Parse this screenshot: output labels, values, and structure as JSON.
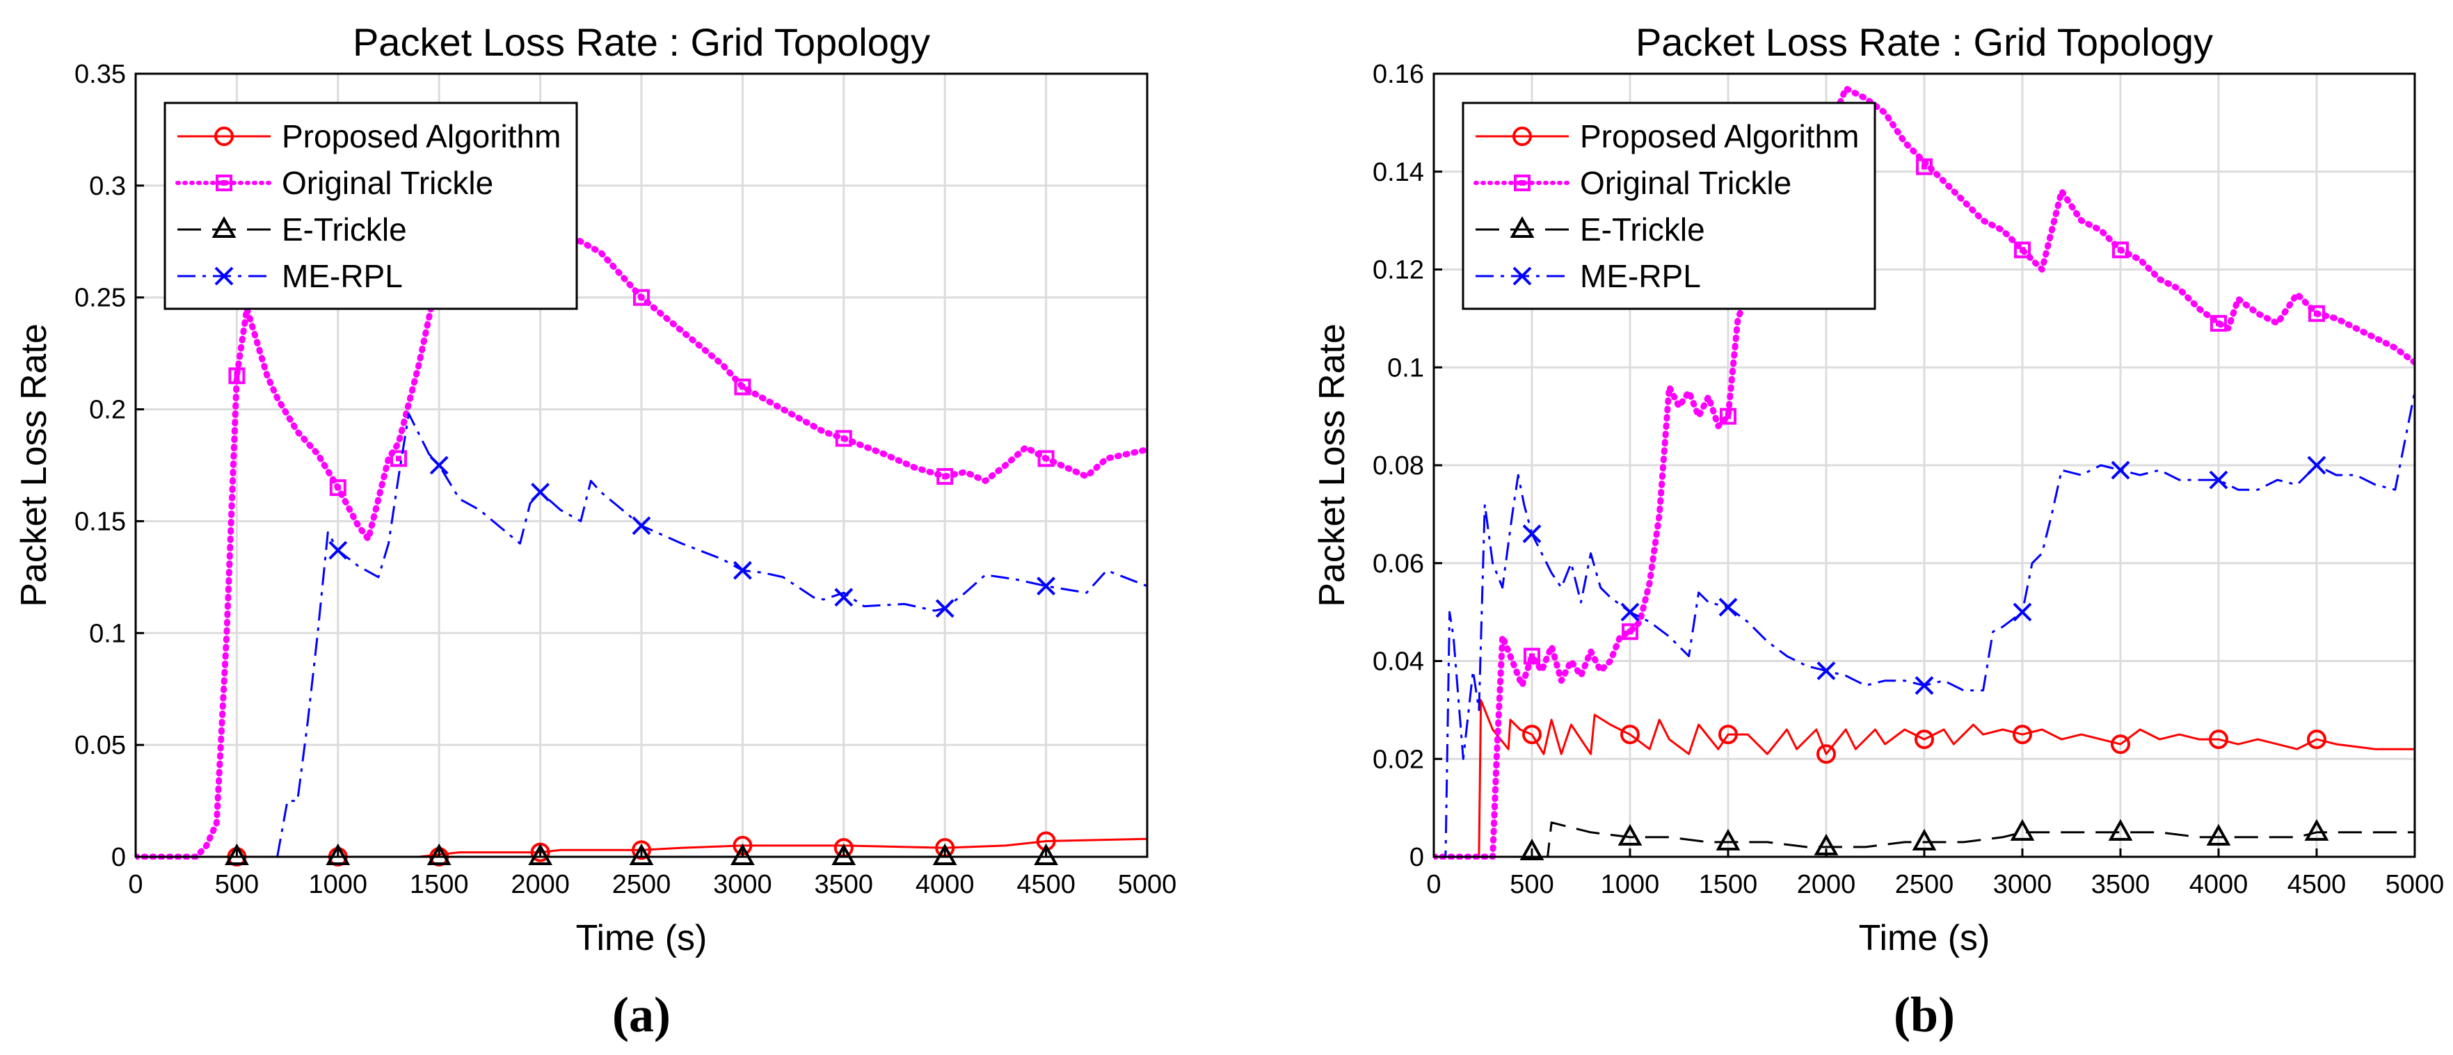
{
  "chart_data": [
    {
      "type": "line",
      "panel": "(a)",
      "title": "Packet Loss Rate : Grid Topology",
      "xlabel": "Time (s)",
      "ylabel": "Packet Loss Rate",
      "xlim": [
        0,
        5000
      ],
      "ylim": [
        0,
        0.35
      ],
      "xticks": [
        0,
        500,
        1000,
        1500,
        2000,
        2500,
        3000,
        3500,
        4000,
        4500,
        5000
      ],
      "xtick_labels": [
        "0",
        "500",
        "1000",
        "1500",
        "2000",
        "2500",
        "3000",
        "3500",
        "4000",
        "4500",
        "5000"
      ],
      "yticks": [
        0,
        0.05,
        0.1,
        0.15,
        0.2,
        0.25,
        0.3,
        0.35
      ],
      "ytick_labels": [
        "0",
        "0.05",
        "0.1",
        "0.15",
        "0.2",
        "0.25",
        "0.3",
        "0.35"
      ],
      "grid": true,
      "legend_position": "top-left",
      "series": [
        {
          "name": "Proposed Algorithm",
          "color": "#ff0000",
          "dash": "solid",
          "marker": "circle",
          "width": 3,
          "x": [
            0,
            1000,
            1400,
            1600,
            2000,
            2100,
            2500,
            2700,
            3000,
            3500,
            4000,
            4300,
            4500,
            5000
          ],
          "y": [
            0,
            0,
            0,
            0.002,
            0.002,
            0.003,
            0.003,
            0.004,
            0.005,
            0.005,
            0.004,
            0.005,
            0.007,
            0.008
          ],
          "marker_x": [
            500,
            1000,
            1500,
            2000,
            2500,
            3000,
            3500,
            4000,
            4500
          ],
          "marker_y": [
            0,
            0,
            0,
            0.002,
            0.003,
            0.005,
            0.004,
            0.004,
            0.007
          ]
        },
        {
          "name": "Original Trickle",
          "color": "#ff00ff",
          "dash": "dotted",
          "marker": "square",
          "width": 9,
          "x": [
            0,
            300,
            350,
            400,
            450,
            500,
            550,
            600,
            650,
            700,
            800,
            900,
            1000,
            1100,
            1150,
            1200,
            1250,
            1300,
            1400,
            1500,
            1600,
            1700,
            1900,
            2100,
            2300,
            2500,
            2700,
            2900,
            3000,
            3200,
            3400,
            3500,
            3700,
            3850,
            4000,
            4100,
            4200,
            4300,
            4400,
            4500,
            4600,
            4700,
            4800,
            5000
          ],
          "y": [
            0,
            0,
            0.005,
            0.015,
            0.1,
            0.215,
            0.245,
            0.23,
            0.215,
            0.205,
            0.19,
            0.18,
            0.165,
            0.148,
            0.142,
            0.16,
            0.178,
            0.185,
            0.22,
            0.262,
            0.305,
            0.3,
            0.29,
            0.28,
            0.27,
            0.25,
            0.235,
            0.22,
            0.21,
            0.2,
            0.19,
            0.187,
            0.18,
            0.174,
            0.17,
            0.172,
            0.168,
            0.175,
            0.183,
            0.178,
            0.174,
            0.17,
            0.178,
            0.182
          ],
          "marker_x": [
            500,
            1000,
            1300,
            2500,
            3000,
            3500,
            4000,
            4500
          ],
          "marker_y": [
            0.215,
            0.165,
            0.178,
            0.25,
            0.21,
            0.187,
            0.17,
            0.178
          ]
        },
        {
          "name": "E-Trickle",
          "color": "#000000",
          "dash": "dashed",
          "marker": "triangle",
          "width": 3,
          "x": [
            0,
            5000
          ],
          "y": [
            0,
            0
          ],
          "marker_x": [
            500,
            1000,
            1500,
            2000,
            2500,
            3000,
            3500,
            4000,
            4500
          ],
          "marker_y": [
            0,
            0,
            0,
            0,
            0,
            0,
            0,
            0,
            0
          ]
        },
        {
          "name": "ME-RPL",
          "color": "#0000ff",
          "dash": "dashdot",
          "marker": "x",
          "width": 3,
          "x": [
            0,
            700,
            750,
            800,
            850,
            900,
            950,
            1000,
            1100,
            1200,
            1250,
            1300,
            1350,
            1450,
            1500,
            1600,
            1700,
            1900,
            1950,
            2000,
            2100,
            2200,
            2250,
            2300,
            2500,
            2700,
            2900,
            3000,
            3100,
            3200,
            3350,
            3400,
            3500,
            3600,
            3800,
            3950,
            4000,
            4100,
            4200,
            4350,
            4450,
            4500,
            4700,
            4800,
            5000
          ],
          "y": [
            0,
            0,
            0.025,
            0.025,
            0.06,
            0.1,
            0.145,
            0.137,
            0.13,
            0.125,
            0.14,
            0.17,
            0.198,
            0.18,
            0.175,
            0.16,
            0.155,
            0.14,
            0.158,
            0.163,
            0.155,
            0.15,
            0.168,
            0.163,
            0.148,
            0.14,
            0.133,
            0.128,
            0.127,
            0.125,
            0.116,
            0.115,
            0.118,
            0.112,
            0.113,
            0.11,
            0.111,
            0.118,
            0.126,
            0.124,
            0.122,
            0.121,
            0.118,
            0.128,
            0.121
          ],
          "marker_x": [
            1000,
            1500,
            2000,
            2500,
            3000,
            3500,
            4000,
            4500
          ],
          "marker_y": [
            0.137,
            0.175,
            0.163,
            0.148,
            0.128,
            0.116,
            0.111,
            0.121
          ]
        }
      ]
    },
    {
      "type": "line",
      "panel": "(b)",
      "title": "Packet Loss Rate : Grid Topology",
      "xlabel": "Time (s)",
      "ylabel": "Packet Loss Rate",
      "xlim": [
        0,
        5000
      ],
      "ylim": [
        0,
        0.16
      ],
      "xticks": [
        0,
        500,
        1000,
        1500,
        2000,
        2500,
        3000,
        3500,
        4000,
        4500,
        5000
      ],
      "xtick_labels": [
        "0",
        "500",
        "1000",
        "1500",
        "2000",
        "2500",
        "3000",
        "3500",
        "4000",
        "4500",
        "5000"
      ],
      "yticks": [
        0,
        0.02,
        0.04,
        0.06,
        0.08,
        0.1,
        0.12,
        0.14,
        0.16
      ],
      "ytick_labels": [
        "0",
        "0.02",
        "0.04",
        "0.06",
        "0.08",
        "0.1",
        "0.12",
        "0.14",
        "0.16"
      ],
      "grid": true,
      "legend_position": "top-left",
      "series": [
        {
          "name": "Proposed Algorithm",
          "color": "#ff0000",
          "dash": "solid",
          "marker": "circle",
          "width": 3,
          "x": [
            0,
            230,
            240,
            300,
            380,
            390,
            440,
            500,
            560,
            600,
            650,
            700,
            800,
            820,
            900,
            1000,
            1100,
            1150,
            1200,
            1300,
            1350,
            1450,
            1500,
            1600,
            1700,
            1800,
            1850,
            1950,
            2000,
            2100,
            2150,
            2250,
            2300,
            2400,
            2500,
            2600,
            2650,
            2750,
            2800,
            2900,
            3000,
            3100,
            3200,
            3300,
            3400,
            3500,
            3600,
            3700,
            3800,
            3900,
            4000,
            4100,
            4200,
            4300,
            4400,
            4500,
            4600,
            4800,
            5000
          ],
          "y": [
            0,
            0,
            0.032,
            0.026,
            0.022,
            0.028,
            0.026,
            0.025,
            0.021,
            0.028,
            0.021,
            0.027,
            0.021,
            0.029,
            0.027,
            0.025,
            0.022,
            0.028,
            0.024,
            0.021,
            0.027,
            0.022,
            0.025,
            0.025,
            0.021,
            0.026,
            0.022,
            0.026,
            0.021,
            0.026,
            0.022,
            0.026,
            0.023,
            0.026,
            0.024,
            0.026,
            0.023,
            0.027,
            0.025,
            0.026,
            0.025,
            0.026,
            0.024,
            0.025,
            0.024,
            0.023,
            0.026,
            0.024,
            0.025,
            0.024,
            0.024,
            0.023,
            0.024,
            0.023,
            0.022,
            0.024,
            0.023,
            0.022,
            0.022
          ],
          "marker_x": [
            500,
            1000,
            1500,
            2000,
            2500,
            3000,
            3500,
            4000,
            4500
          ],
          "marker_y": [
            0.025,
            0.025,
            0.025,
            0.021,
            0.024,
            0.025,
            0.023,
            0.024,
            0.024
          ]
        },
        {
          "name": "Original Trickle",
          "color": "#ff00ff",
          "dash": "dotted",
          "marker": "square",
          "width": 9,
          "x": [
            0,
            300,
            320,
            350,
            400,
            450,
            500,
            550,
            600,
            650,
            700,
            750,
            800,
            850,
            900,
            950,
            1000,
            1050,
            1100,
            1150,
            1200,
            1250,
            1300,
            1350,
            1400,
            1450,
            1500,
            1550,
            1600,
            1650,
            1700,
            1750,
            1800,
            1850,
            1900,
            1950,
            2000,
            2050,
            2100,
            2200,
            2300,
            2400,
            2500,
            2600,
            2700,
            2800,
            2900,
            3000,
            3050,
            3100,
            3200,
            3300,
            3400,
            3500,
            3600,
            3700,
            3800,
            3900,
            4000,
            4050,
            4100,
            4200,
            4300,
            4400,
            4500,
            4600,
            4700,
            4800,
            4900,
            5000
          ],
          "y": [
            0,
            0,
            0.02,
            0.045,
            0.04,
            0.035,
            0.041,
            0.038,
            0.043,
            0.036,
            0.04,
            0.037,
            0.042,
            0.038,
            0.04,
            0.045,
            0.046,
            0.048,
            0.056,
            0.07,
            0.096,
            0.092,
            0.095,
            0.09,
            0.094,
            0.088,
            0.09,
            0.11,
            0.115,
            0.112,
            0.12,
            0.124,
            0.13,
            0.128,
            0.138,
            0.143,
            0.15,
            0.152,
            0.157,
            0.155,
            0.152,
            0.146,
            0.142,
            0.138,
            0.134,
            0.13,
            0.128,
            0.124,
            0.122,
            0.12,
            0.136,
            0.13,
            0.128,
            0.124,
            0.122,
            0.118,
            0.116,
            0.112,
            0.109,
            0.108,
            0.114,
            0.111,
            0.109,
            0.115,
            0.111,
            0.11,
            0.108,
            0.106,
            0.104,
            0.101
          ],
          "marker_x": [
            500,
            1000,
            1500,
            2500,
            3000,
            3500,
            4000,
            4500
          ],
          "marker_y": [
            0.041,
            0.046,
            0.09,
            0.141,
            0.124,
            0.124,
            0.109,
            0.111
          ]
        },
        {
          "name": "E-Trickle",
          "color": "#000000",
          "dash": "dashed",
          "marker": "triangle",
          "width": 3,
          "x": [
            0,
            580,
            600,
            700,
            800,
            1000,
            1200,
            1400,
            1500,
            1700,
            1900,
            2000,
            2200,
            2400,
            2500,
            2700,
            2900,
            3000,
            3200,
            3400,
            3500,
            3700,
            3900,
            4000,
            4200,
            4400,
            4500,
            4700,
            4900,
            5000
          ],
          "y": [
            0,
            0,
            0.007,
            0.006,
            0.005,
            0.004,
            0.004,
            0.003,
            0.003,
            0.003,
            0.002,
            0.002,
            0.002,
            0.003,
            0.003,
            0.003,
            0.004,
            0.005,
            0.005,
            0.005,
            0.005,
            0.005,
            0.004,
            0.004,
            0.004,
            0.004,
            0.005,
            0.005,
            0.005,
            0.005
          ],
          "marker_x": [
            500,
            1000,
            1500,
            2000,
            2500,
            3000,
            3500,
            4000,
            4500
          ],
          "marker_y": [
            0.001,
            0.004,
            0.003,
            0.002,
            0.003,
            0.005,
            0.005,
            0.004,
            0.005
          ]
        },
        {
          "name": "ME-RPL",
          "color": "#0000ff",
          "dash": "dashdot",
          "marker": "x",
          "width": 3,
          "x": [
            0,
            60,
            80,
            100,
            150,
            200,
            230,
            260,
            300,
            350,
            400,
            430,
            460,
            500,
            550,
            600,
            650,
            700,
            750,
            800,
            850,
            900,
            1000,
            1100,
            1200,
            1300,
            1350,
            1400,
            1500,
            1600,
            1700,
            1800,
            1900,
            2000,
            2100,
            2200,
            2300,
            2400,
            2500,
            2600,
            2700,
            2800,
            2850,
            2900,
            3000,
            3050,
            3100,
            3150,
            3200,
            3300,
            3400,
            3500,
            3600,
            3700,
            3800,
            3900,
            4000,
            4100,
            4200,
            4300,
            4400,
            4500,
            4600,
            4700,
            4800,
            4900,
            5000
          ],
          "y": [
            0,
            0,
            0.05,
            0.045,
            0.02,
            0.038,
            0.03,
            0.072,
            0.06,
            0.055,
            0.07,
            0.078,
            0.072,
            0.066,
            0.062,
            0.058,
            0.055,
            0.06,
            0.052,
            0.062,
            0.055,
            0.053,
            0.05,
            0.048,
            0.045,
            0.041,
            0.054,
            0.052,
            0.051,
            0.048,
            0.044,
            0.041,
            0.039,
            0.038,
            0.037,
            0.035,
            0.036,
            0.036,
            0.035,
            0.036,
            0.034,
            0.034,
            0.046,
            0.047,
            0.05,
            0.06,
            0.062,
            0.07,
            0.079,
            0.078,
            0.08,
            0.079,
            0.078,
            0.079,
            0.077,
            0.077,
            0.077,
            0.075,
            0.075,
            0.077,
            0.076,
            0.08,
            0.078,
            0.078,
            0.076,
            0.075,
            0.095
          ],
          "marker_x": [
            500,
            1000,
            1500,
            2000,
            2500,
            3000,
            3500,
            4000,
            4500
          ],
          "marker_y": [
            0.066,
            0.05,
            0.051,
            0.038,
            0.035,
            0.05,
            0.079,
            0.077,
            0.08
          ]
        }
      ]
    }
  ]
}
